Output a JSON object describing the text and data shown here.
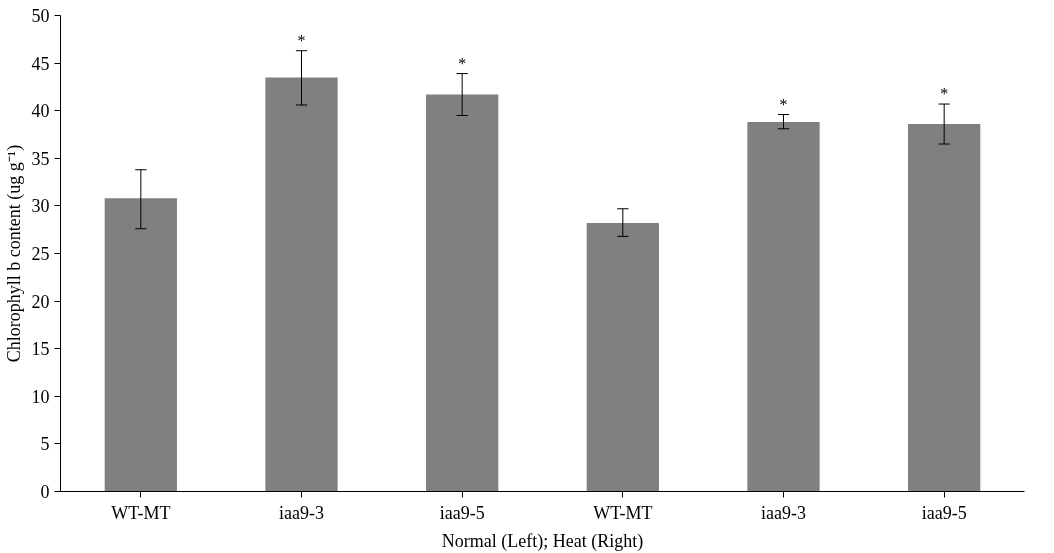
{
  "chart_data": {
    "type": "bar",
    "xlabel": "Normal (Left); Heat (Right)",
    "ylabel": "Chlorophyll b content (ug g⁻¹)",
    "categories": [
      "WT-MT",
      "iaa9-3",
      "iaa9-5",
      "WT-MT",
      "iaa9-3",
      "iaa9-5"
    ],
    "values": [
      30.8,
      43.5,
      41.7,
      28.2,
      38.8,
      38.6
    ],
    "errors": [
      [
        27.6,
        33.8
      ],
      [
        40.6,
        46.3
      ],
      [
        39.5,
        43.9
      ],
      [
        26.8,
        29.7
      ],
      [
        38.1,
        39.6
      ],
      [
        36.5,
        40.7
      ]
    ],
    "value_labels": [
      null,
      "*",
      "*",
      null,
      "*",
      "*"
    ],
    "color": "#808080",
    "ylim": [
      0,
      50
    ],
    "yticks": [
      0,
      5,
      10,
      15,
      20,
      25,
      30,
      35,
      40,
      45,
      50
    ],
    "grid": false
  }
}
